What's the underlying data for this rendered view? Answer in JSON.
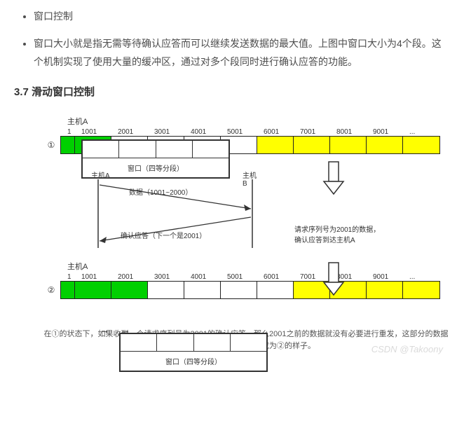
{
  "bullets": {
    "b1": "窗口控制",
    "b2": "窗口大小就是指无需等待确认应答而可以继续发送数据的最大值。上图中窗口大小为4个段。这个机制实现了使用大量的缓冲区，通过对多个段同时进行确认应答的功能。"
  },
  "section_title": "3.7 滑动窗口控制",
  "fig": {
    "hostA": "主机A",
    "hostB": "主机B",
    "ticks": [
      "1",
      "1001",
      "2001",
      "3001",
      "4001",
      "5001",
      "6001",
      "7001",
      "8001",
      "9001",
      "..."
    ],
    "circ1": "①",
    "circ2": "②",
    "winlabel": "窗口（四等分段）",
    "dataline": "数据（1001~2000）",
    "ackline": "确认应答（下一个是2001）",
    "request_l1": "请求序列号为2001的数据，",
    "request_l2": "确认应答到达主机A",
    "caption": "在①的状态下，如果收到一个请求序列号为2001的确认应答，那么2001之前的数据就没有必要进行重发，这部分的数据可以被过滤掉，滑动窗口成为②的样子。",
    "watermark": "CSDN @Takoony",
    "colors": {
      "green": "#00d000",
      "yellow": "#ffff00",
      "white": "#ffffff",
      "border": "#222222"
    },
    "seg_width": 52,
    "first_seg_width": 20,
    "segments1": [
      {
        "w": 20,
        "color": "green"
      },
      {
        "w": 52,
        "color": "green"
      },
      {
        "w": 52,
        "color": "white"
      },
      {
        "w": 52,
        "color": "white"
      },
      {
        "w": 52,
        "color": "white"
      },
      {
        "w": 52,
        "color": "white"
      },
      {
        "w": 52,
        "color": "yellow"
      },
      {
        "w": 52,
        "color": "yellow"
      },
      {
        "w": 52,
        "color": "yellow"
      },
      {
        "w": 52,
        "color": "yellow"
      },
      {
        "w": 52,
        "color": "yellow"
      }
    ],
    "segments2": [
      {
        "w": 20,
        "color": "green"
      },
      {
        "w": 52,
        "color": "green"
      },
      {
        "w": 52,
        "color": "green"
      },
      {
        "w": 52,
        "color": "white"
      },
      {
        "w": 52,
        "color": "white"
      },
      {
        "w": 52,
        "color": "white"
      },
      {
        "w": 52,
        "color": "white"
      },
      {
        "w": 52,
        "color": "yellow"
      },
      {
        "w": 52,
        "color": "yellow"
      },
      {
        "w": 52,
        "color": "yellow"
      },
      {
        "w": 52,
        "color": "yellow"
      }
    ]
  }
}
